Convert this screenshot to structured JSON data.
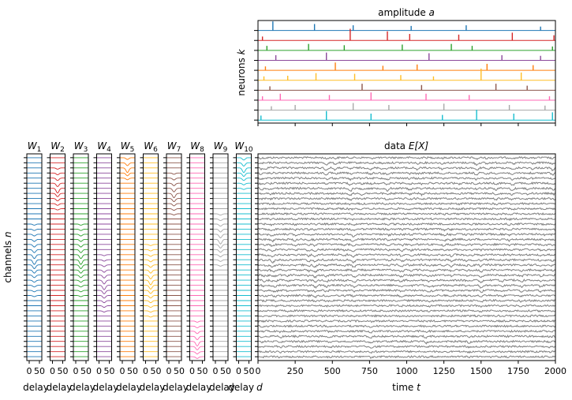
{
  "colors": [
    "#1f77b4",
    "#d62728",
    "#2ca02c",
    "#8c4a9c",
    "#ff7f0e",
    "#ffbe26",
    "#8c564b",
    "#ff69b4",
    "#a8a8a8",
    "#17becf"
  ],
  "data_color": "#7f7f7f",
  "chart_data": [
    {
      "type": "scatter",
      "title": "amplitude a",
      "title_plain": "amplitude ",
      "title_var": "a",
      "ylabel": "neurons k",
      "ylabel_plain": "neurons ",
      "ylabel_var": "k",
      "xlim": [
        0,
        2000
      ],
      "x_ticks": [
        0,
        250,
        500,
        750,
        1000,
        1250,
        1500,
        1750,
        2000
      ],
      "tick_labels_visible": false,
      "note": "sparse spike raster; each row is a neuron, spike heights are relative amplitudes",
      "series": [
        {
          "spikes": [
            [
              100,
              0.7
            ],
            [
              380,
              0.5
            ],
            [
              640,
              0.4
            ],
            [
              1030,
              0.35
            ],
            [
              1400,
              0.4
            ],
            [
              1900,
              0.3
            ]
          ]
        },
        {
          "spikes": [
            [
              30,
              0.3
            ],
            [
              620,
              0.9
            ],
            [
              870,
              0.7
            ],
            [
              1020,
              0.5
            ],
            [
              1350,
              0.45
            ],
            [
              1710,
              0.6
            ],
            [
              1990,
              0.4
            ]
          ]
        },
        {
          "spikes": [
            [
              60,
              0.35
            ],
            [
              340,
              0.5
            ],
            [
              580,
              0.4
            ],
            [
              970,
              0.45
            ],
            [
              1300,
              0.5
            ],
            [
              1440,
              0.35
            ],
            [
              1980,
              0.3
            ]
          ]
        },
        {
          "spikes": [
            [
              120,
              0.4
            ],
            [
              460,
              0.6
            ],
            [
              1150,
              0.55
            ],
            [
              1640,
              0.4
            ],
            [
              1900,
              0.35
            ]
          ]
        },
        {
          "spikes": [
            [
              50,
              0.3
            ],
            [
              520,
              0.6
            ],
            [
              840,
              0.35
            ],
            [
              1070,
              0.45
            ],
            [
              1540,
              0.5
            ],
            [
              1850,
              0.4
            ]
          ]
        },
        {
          "spikes": [
            [
              40,
              0.3
            ],
            [
              200,
              0.35
            ],
            [
              390,
              0.55
            ],
            [
              650,
              0.5
            ],
            [
              960,
              0.4
            ],
            [
              1180,
              0.3
            ],
            [
              1500,
              0.9
            ],
            [
              1770,
              0.6
            ]
          ]
        },
        {
          "spikes": [
            [
              80,
              0.3
            ],
            [
              700,
              0.5
            ],
            [
              1100,
              0.4
            ],
            [
              1600,
              0.5
            ],
            [
              1810,
              0.35
            ]
          ]
        },
        {
          "spikes": [
            [
              30,
              0.3
            ],
            [
              150,
              0.5
            ],
            [
              480,
              0.4
            ],
            [
              760,
              0.6
            ],
            [
              1130,
              0.5
            ],
            [
              1420,
              0.4
            ],
            [
              1960,
              0.3
            ]
          ]
        },
        {
          "spikes": [
            [
              90,
              0.3
            ],
            [
              250,
              0.4
            ],
            [
              640,
              0.55
            ],
            [
              880,
              0.4
            ],
            [
              1250,
              0.5
            ],
            [
              1690,
              0.4
            ],
            [
              1930,
              0.35
            ]
          ]
        },
        {
          "spikes": [
            [
              20,
              0.35
            ],
            [
              460,
              0.7
            ],
            [
              760,
              0.5
            ],
            [
              1240,
              0.4
            ],
            [
              1470,
              0.8
            ],
            [
              1720,
              0.5
            ],
            [
              1980,
              0.6
            ]
          ]
        }
      ]
    },
    {
      "type": "line",
      "title": "data E[X]",
      "title_plain": "data ",
      "title_math": "E[X]",
      "xlabel": "time t",
      "xlabel_plain": "time ",
      "xlabel_var": "t",
      "xlim": [
        0,
        2000
      ],
      "x_ticks": [
        0,
        250,
        500,
        750,
        1000,
        1250,
        1500,
        1750,
        2000
      ],
      "x_tick_labels": [
        "0",
        "250",
        "500",
        "750",
        "1000",
        "1250",
        "1500",
        "1750",
        "2000"
      ],
      "n_channels": 40,
      "note": "40 noisy grey channel traces; dips appear at spike times of the neurons above"
    },
    {
      "type": "line",
      "panels": [
        {
          "title": "W",
          "sub": "1",
          "center": 0.5,
          "spread": 5
        },
        {
          "title": "W",
          "sub": "2",
          "center": 0.15,
          "spread": 3
        },
        {
          "title": "W",
          "sub": "3",
          "center": 0.5,
          "spread": 5
        },
        {
          "title": "W",
          "sub": "4",
          "center": 0.62,
          "spread": 4
        },
        {
          "title": "W",
          "sub": "5",
          "center": 0.05,
          "spread": 2
        },
        {
          "title": "W",
          "sub": "6",
          "center": 0.6,
          "spread": 5
        },
        {
          "title": "W",
          "sub": "7",
          "center": 0.17,
          "spread": 3
        },
        {
          "title": "W",
          "sub": "8",
          "center": 0.9,
          "spread": 3
        },
        {
          "title": "W",
          "sub": "9",
          "center": 0.4,
          "spread": 4
        },
        {
          "title": "W",
          "sub": "10",
          "center": 0.05,
          "spread": 3
        }
      ],
      "ylabel": "channels n",
      "ylabel_plain": "channels ",
      "ylabel_var": "n",
      "x_tick_labels": [
        "0",
        "50"
      ],
      "xlabel": "delay d",
      "xlabel_plain": "delay",
      "xlabel_var": "d",
      "n_channels": 40
    }
  ]
}
